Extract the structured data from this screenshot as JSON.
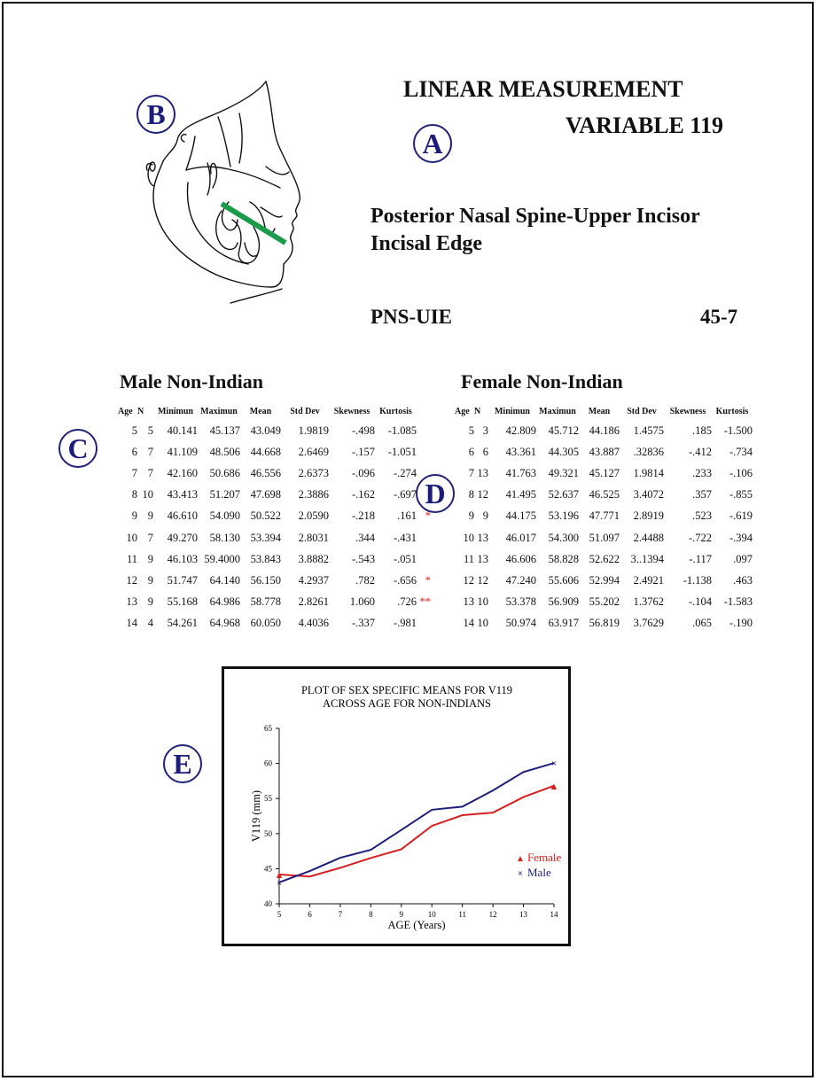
{
  "labels": {
    "a": "A",
    "b": "B",
    "c": "C",
    "d": "D",
    "e": "E"
  },
  "header": {
    "title_line1": "LINEAR MEASUREMENT",
    "title_line2": "VARIABLE 119",
    "name": "Posterior Nasal Spine-Upper Incisor Incisal Edge",
    "abbreviation": "PNS-UIE",
    "code": "45-7"
  },
  "male": {
    "heading": "Male Non-Indian",
    "columns": [
      "Age",
      "N",
      "Minimun",
      "Maximun",
      "Mean",
      "Std Dev",
      "Skewness",
      "Kurtosis"
    ],
    "rows": [
      {
        "age": "5",
        "n": "5",
        "min": "40.141",
        "max": "45.137",
        "mean": "43.049",
        "sd": "1.9819",
        "skew": "-.498",
        "kurt": "-1.085",
        "flag": ""
      },
      {
        "age": "6",
        "n": "7",
        "min": "41.109",
        "max": "48.506",
        "mean": "44.668",
        "sd": "2.6469",
        "skew": "-.157",
        "kurt": "-1.051",
        "flag": ""
      },
      {
        "age": "7",
        "n": "7",
        "min": "42.160",
        "max": "50.686",
        "mean": "46.556",
        "sd": "2.6373",
        "skew": "-.096",
        "kurt": "-.274",
        "flag": ""
      },
      {
        "age": "8",
        "n": "10",
        "min": "43.413",
        "max": "51.207",
        "mean": "47.698",
        "sd": "2.3886",
        "skew": "-.162",
        "kurt": "-.697",
        "flag": ""
      },
      {
        "age": "9",
        "n": "9",
        "min": "46.610",
        "max": "54.090",
        "mean": "50.522",
        "sd": "2.0590",
        "skew": "-.218",
        "kurt": ".161",
        "flag": "*"
      },
      {
        "age": "10",
        "n": "7",
        "min": "49.270",
        "max": "58.130",
        "mean": "53.394",
        "sd": "2.8031",
        "skew": ".344",
        "kurt": "-.431",
        "flag": ""
      },
      {
        "age": "11",
        "n": "9",
        "min": "46.103",
        "max": "59.4000",
        "mean": "53.843",
        "sd": "3.8882",
        "skew": "-.543",
        "kurt": "-.051",
        "flag": ""
      },
      {
        "age": "12",
        "n": "9",
        "min": "51.747",
        "max": "64.140",
        "mean": "56.150",
        "sd": "4.2937",
        "skew": ".782",
        "kurt": "-.656",
        "flag": "*"
      },
      {
        "age": "13",
        "n": "9",
        "min": "55.168",
        "max": "64.986",
        "mean": "58.778",
        "sd": "2.8261",
        "skew": "1.060",
        "kurt": ".726",
        "flag": "**"
      },
      {
        "age": "14",
        "n": "4",
        "min": "54.261",
        "max": "64.968",
        "mean": "60.050",
        "sd": "4.4036",
        "skew": "-.337",
        "kurt": "-.981",
        "flag": ""
      }
    ]
  },
  "female": {
    "heading": "Female Non-Indian",
    "columns": [
      "Age",
      "N",
      "Minimun",
      "Maximun",
      "Mean",
      "Std Dev",
      "Skewness",
      "Kurtosis"
    ],
    "rows": [
      {
        "age": "5",
        "n": "3",
        "min": "42.809",
        "max": "45.712",
        "mean": "44.186",
        "sd": "1.4575",
        "skew": ".185",
        "kurt": "-1.500",
        "flag": ""
      },
      {
        "age": "6",
        "n": "6",
        "min": "43.361",
        "max": "44.305",
        "mean": "43.887",
        "sd": ".32836",
        "skew": "-.412",
        "kurt": "-.734",
        "flag": ""
      },
      {
        "age": "7",
        "n": "13",
        "min": "41.763",
        "max": "49.321",
        "mean": "45.127",
        "sd": "1.9814",
        "skew": ".233",
        "kurt": "-.106",
        "flag": ""
      },
      {
        "age": "8",
        "n": "12",
        "min": "41.495",
        "max": "52.637",
        "mean": "46.525",
        "sd": "3.4072",
        "skew": ".357",
        "kurt": "-.855",
        "flag": ""
      },
      {
        "age": "9",
        "n": "9",
        "min": "44.175",
        "max": "53.196",
        "mean": "47.771",
        "sd": "2.8919",
        "skew": ".523",
        "kurt": "-.619",
        "flag": ""
      },
      {
        "age": "10",
        "n": "13",
        "min": "46.017",
        "max": "54.300",
        "mean": "51.097",
        "sd": "2.4488",
        "skew": "-.722",
        "kurt": "-.394",
        "flag": ""
      },
      {
        "age": "11",
        "n": "13",
        "min": "46.606",
        "max": "58.828",
        "mean": "52.622",
        "sd": "3..1394",
        "skew": "-.117",
        "kurt": ".097",
        "flag": ""
      },
      {
        "age": "12",
        "n": "12",
        "min": "47.240",
        "max": "55.606",
        "mean": "52.994",
        "sd": "2.4921",
        "skew": "-1.138",
        "kurt": ".463",
        "flag": ""
      },
      {
        "age": "13",
        "n": "10",
        "min": "53.378",
        "max": "56.909",
        "mean": "55.202",
        "sd": "1.3762",
        "skew": "-.104",
        "kurt": "-1.583",
        "flag": ""
      },
      {
        "age": "14",
        "n": "10",
        "min": "50.974",
        "max": "63.917",
        "mean": "56.819",
        "sd": "3.7629",
        "skew": ".065",
        "kurt": "-.190",
        "flag": ""
      }
    ]
  },
  "colors": {
    "female": "#d42020",
    "male": "#1f1f7a",
    "accent": "#1c1c7a",
    "star": "#dd2222",
    "jaw_line": "#1a9a4a"
  },
  "chart_data": {
    "type": "line",
    "title_line1": "PLOT OF SEX SPECIFIC MEANS FOR V119",
    "title_line2": "ACROSS AGE FOR NON-INDIANS",
    "xlabel": "AGE (Years)",
    "ylabel": "V119 (mm)",
    "x": [
      5,
      6,
      7,
      8,
      9,
      10,
      11,
      12,
      13,
      14
    ],
    "xlim": [
      5,
      14
    ],
    "ylim": [
      40,
      65
    ],
    "yticks": [
      40,
      45,
      50,
      55,
      60,
      65
    ],
    "grid": false,
    "legend_position": "bottom-right",
    "series": [
      {
        "name": "Female",
        "marker": "▲",
        "color": "#d42020",
        "values": [
          44.186,
          43.887,
          45.127,
          46.525,
          47.771,
          51.097,
          52.622,
          52.994,
          55.202,
          56.819
        ]
      },
      {
        "name": "Male",
        "marker": "×",
        "color": "#1f1f7a",
        "values": [
          43.049,
          44.668,
          46.556,
          47.698,
          50.522,
          53.394,
          53.843,
          56.15,
          58.778,
          60.05
        ]
      }
    ]
  }
}
